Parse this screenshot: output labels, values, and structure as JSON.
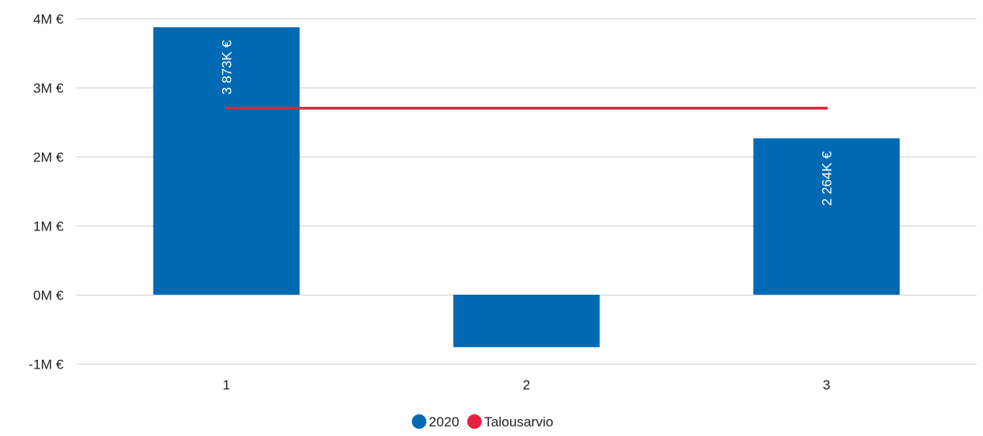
{
  "chart_data": {
    "type": "bar",
    "categories": [
      "1",
      "2",
      "3"
    ],
    "series": [
      {
        "name": "2020",
        "type": "bar",
        "color": "#0069B4",
        "values": [
          3873,
          -760,
          2264
        ],
        "data_labels": [
          "3 873K €",
          "",
          "2 264K €"
        ]
      },
      {
        "name": "Talousarvio",
        "type": "line",
        "color": "#E8203F",
        "values": [
          2700,
          2700,
          2700
        ]
      }
    ],
    "y_unit": "K €",
    "ylim": [
      -1000,
      4000
    ],
    "y_ticks": [
      4000,
      3000,
      2000,
      1000,
      0,
      -1000
    ],
    "y_tick_labels": [
      "4M €",
      "3M €",
      "2M €",
      "1M €",
      "0M €",
      "-1M €"
    ],
    "grid": true,
    "legend_position": "bottom-center"
  }
}
